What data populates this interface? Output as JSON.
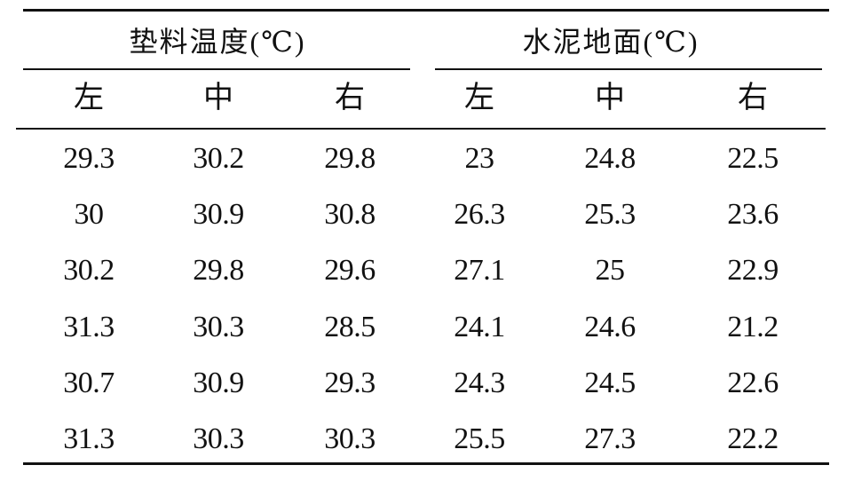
{
  "groups": [
    "垫料温度(℃)",
    "水泥地面(℃)"
  ],
  "columns": [
    "左",
    "中",
    "右",
    "左",
    "中",
    "右"
  ],
  "rows": [
    [
      "29.3",
      "30.2",
      "29.8",
      "23",
      "24.8",
      "22.5"
    ],
    [
      "30",
      "30.9",
      "30.8",
      "26.3",
      "25.3",
      "23.6"
    ],
    [
      "30.2",
      "29.8",
      "29.6",
      "27.1",
      "25",
      "22.9"
    ],
    [
      "31.3",
      "30.3",
      "28.5",
      "24.1",
      "24.6",
      "21.2"
    ],
    [
      "30.7",
      "30.9",
      "29.3",
      "24.3",
      "24.5",
      "22.6"
    ],
    [
      "31.3",
      "30.3",
      "30.3",
      "25.5",
      "27.3",
      "22.2"
    ]
  ]
}
